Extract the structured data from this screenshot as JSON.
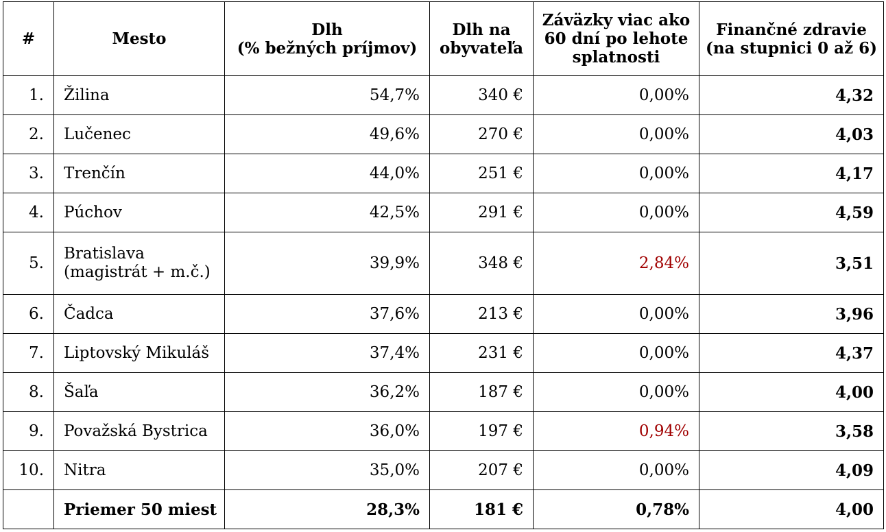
{
  "table": {
    "headers": {
      "rank": "#",
      "city": "Mesto",
      "debt_line1": "Dlh",
      "debt_line2": "(% bežných príjmov)",
      "per_capita_line1": "Dlh na",
      "per_capita_line2": "obyvateľa",
      "overdue_line1": "Záväzky viac ako",
      "overdue_line2": "60 dní po lehote",
      "overdue_line3": "splatnosti",
      "health_line1": "Finančné zdravie",
      "health_line2": "(na stupnici 0 až 6)"
    },
    "rows": [
      {
        "rank": "1.",
        "city": "Žilina",
        "city2": "",
        "debt": "54,7%",
        "per_capita": "340 €",
        "overdue": "0,00%",
        "health": "4,32"
      },
      {
        "rank": "2.",
        "city": "Lučenec",
        "city2": "",
        "debt": "49,6%",
        "per_capita": "270 €",
        "overdue": "0,00%",
        "health": "4,03"
      },
      {
        "rank": "3.",
        "city": "Trenčín",
        "city2": "",
        "debt": "44,0%",
        "per_capita": "251 €",
        "overdue": "0,00%",
        "health": "4,17"
      },
      {
        "rank": "4.",
        "city": "Púchov",
        "city2": "",
        "debt": "42,5%",
        "per_capita": "291 €",
        "overdue": "0,00%",
        "health": "4,59"
      },
      {
        "rank": "5.",
        "city": "Bratislava",
        "city2": "(magistrát + m.č.)",
        "debt": "39,9%",
        "per_capita": "348 €",
        "overdue": "2,84%",
        "health": "3,51"
      },
      {
        "rank": "6.",
        "city": "Čadca",
        "city2": "",
        "debt": "37,6%",
        "per_capita": "213 €",
        "overdue": "0,00%",
        "health": "3,96"
      },
      {
        "rank": "7.",
        "city": "Liptovský Mikuláš",
        "city2": "",
        "debt": "37,4%",
        "per_capita": "231 €",
        "overdue": "0,00%",
        "health": "4,37"
      },
      {
        "rank": "8.",
        "city": "Šaľa",
        "city2": "",
        "debt": "36,2%",
        "per_capita": "187 €",
        "overdue": "0,00%",
        "health": "4,00"
      },
      {
        "rank": "9.",
        "city": "Považská Bystrica",
        "city2": "",
        "debt": "36,0%",
        "per_capita": "197 €",
        "overdue": "0,94%",
        "health": "3,58"
      },
      {
        "rank": "10.",
        "city": "Nitra",
        "city2": "",
        "debt": "35,0%",
        "per_capita": "207 €",
        "overdue": "0,00%",
        "health": "4,09"
      }
    ],
    "average": {
      "rank": "",
      "label": "Priemer 50 miest",
      "debt": "28,3%",
      "per_capita": "181 €",
      "overdue": "0,78%",
      "health": "4,00"
    },
    "colors": {
      "overdue_nonzero": "#a00000",
      "text": "#000000",
      "border": "#000000"
    }
  }
}
